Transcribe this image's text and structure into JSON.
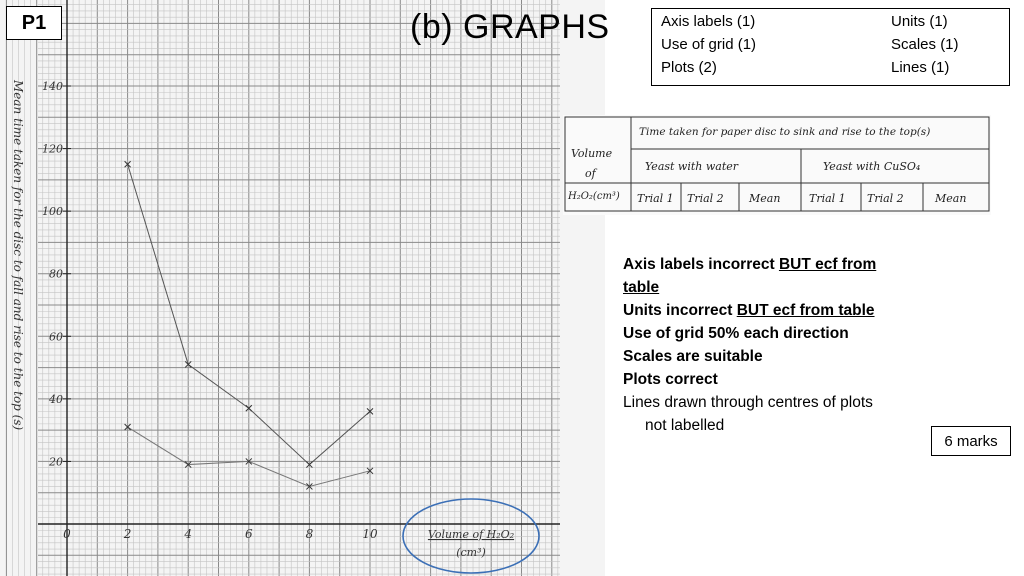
{
  "slide": {
    "label": "P1",
    "heading": "(b)   GRAPHS"
  },
  "criteria": {
    "axis_labels": "Axis labels (1)",
    "units": "Units (1)",
    "use_of_grid": "Use of grid (1)",
    "scales": "Scales (1)",
    "plots": "Plots (2)",
    "lines": "Lines (1)"
  },
  "results_table": {
    "row_header": [
      "Volume",
      "of",
      "H₂O₂(cm³)"
    ],
    "group_header": "Time taken for paper disc to sink and rise to the top(s)",
    "groups": [
      "Yeast with water",
      "Yeast with CuSO₄"
    ],
    "columns": [
      "Trial 1",
      "Trial 2",
      "Mean",
      "Trial 1",
      "Trial 2",
      "Mean"
    ]
  },
  "feedback": {
    "line1_bold": "Axis labels incorrect ",
    "line1_underlined": "BUT ecf from table",
    "line2_bold": "Units incorrect ",
    "line2_underlined": "BUT ecf from table",
    "line3": "Use of grid 50% each direction",
    "line4": "Scales are suitable",
    "line5": "Plots  correct",
    "line6": "Lines drawn through centres of plots",
    "line7": "not labelled"
  },
  "marks": "6 marks",
  "chart_data": {
    "type": "line",
    "xlabel": "Volume of H₂O₂ (cm³)",
    "ylabel": "Mean time taken for the disc to fall and rise to the top (s)",
    "xlim": [
      0,
      10
    ],
    "ylim": [
      0,
      150
    ],
    "x_ticks": [
      "0",
      "2",
      "4",
      "6",
      "8",
      "10"
    ],
    "y_ticks": [
      "20",
      "40",
      "60",
      "80",
      "100",
      "120",
      "140"
    ],
    "grid": true,
    "x": [
      2,
      4,
      6,
      8,
      10
    ],
    "series": [
      {
        "values": [
          115,
          51,
          37,
          19,
          36
        ]
      },
      {
        "values": [
          31,
          19,
          20,
          12,
          17
        ]
      }
    ]
  }
}
